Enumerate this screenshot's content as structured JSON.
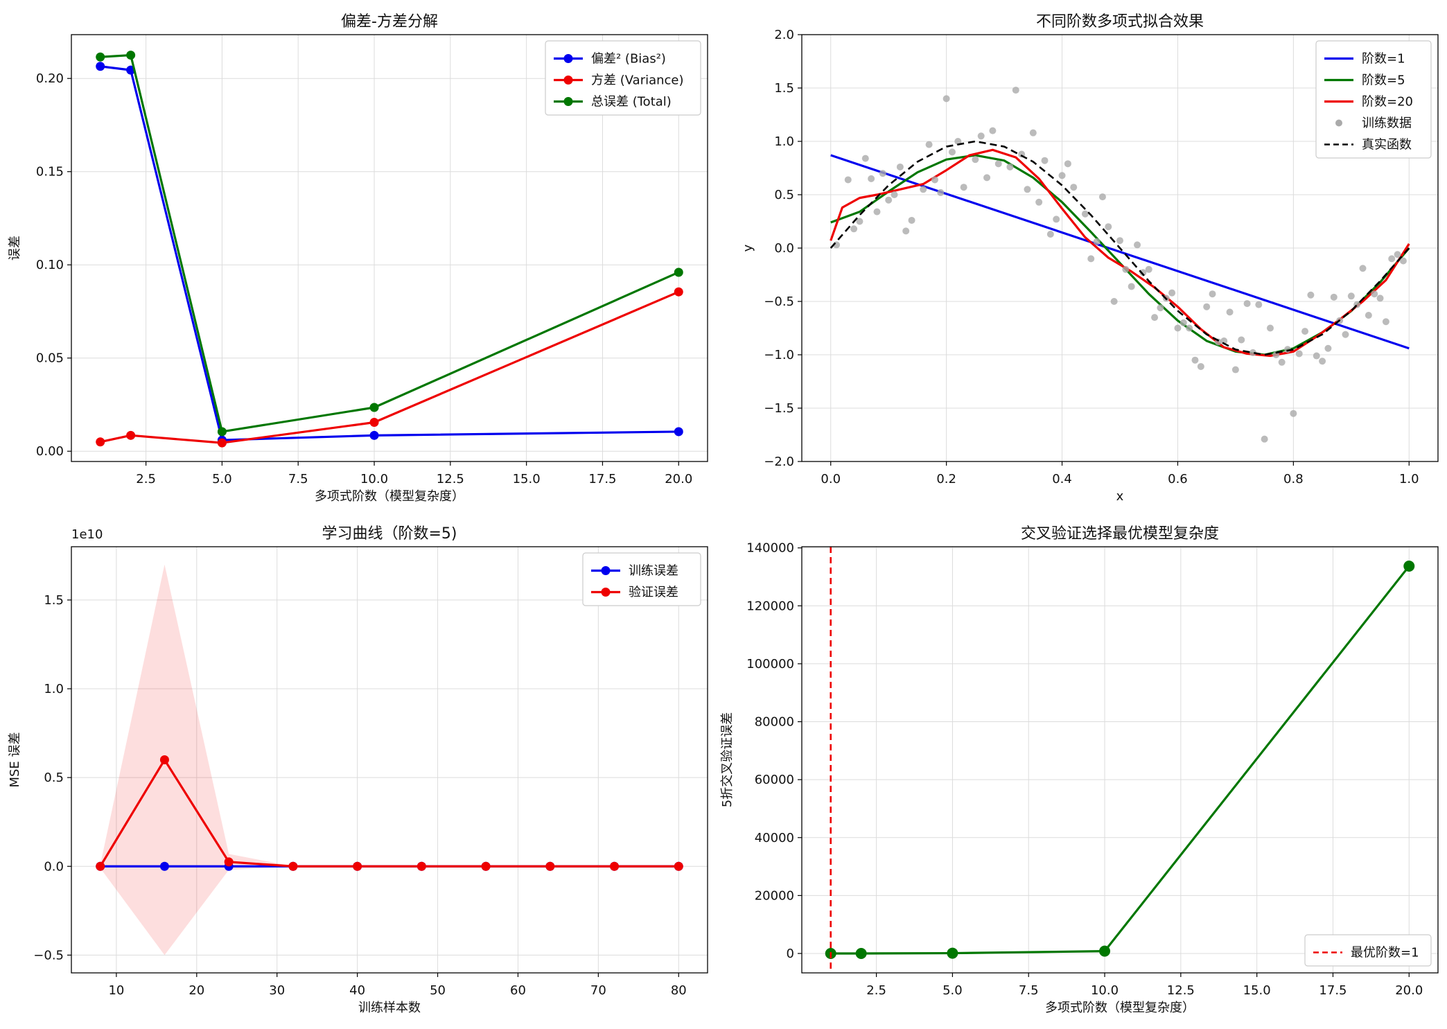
{
  "chart_data": [
    {
      "type": "line",
      "title": "偏差-方差分解",
      "xlabel": "多项式阶数（模型复杂度）",
      "ylabel": "误差",
      "xlim": [
        0.05,
        20.95
      ],
      "ylim": [
        -0.0055,
        0.2235
      ],
      "xticks": [
        2.5,
        5.0,
        7.5,
        10.0,
        12.5,
        15.0,
        17.5,
        20.0
      ],
      "xtick_labels": [
        "2.5",
        "5.0",
        "7.5",
        "10.0",
        "12.5",
        "15.0",
        "17.5",
        "20.0"
      ],
      "yticks": [
        0.0,
        0.05,
        0.1,
        0.15,
        0.2
      ],
      "ytick_labels": [
        "0.00",
        "0.05",
        "0.10",
        "0.15",
        "0.20"
      ],
      "grid": true,
      "legend_position": "top-right",
      "x": [
        1,
        2,
        5,
        10,
        20
      ],
      "series": [
        {
          "name": "偏差² (Bias²)",
          "color": "#0000ee",
          "marker": "circle",
          "values": [
            0.2065,
            0.2045,
            0.006,
            0.0085,
            0.0105
          ]
        },
        {
          "name": "方差 (Variance)",
          "color": "#ee0000",
          "marker": "circle",
          "values": [
            0.005,
            0.0085,
            0.0045,
            0.0155,
            0.0855
          ]
        },
        {
          "name": "总误差 (Total)",
          "color": "#007700",
          "marker": "circle",
          "values": [
            0.2115,
            0.2125,
            0.0105,
            0.0235,
            0.096
          ]
        }
      ]
    },
    {
      "type": "line",
      "title": "不同阶数多项式拟合效果",
      "xlabel": "x",
      "ylabel": "y",
      "xlim": [
        -0.05,
        1.05
      ],
      "ylim": [
        -2.0,
        2.0
      ],
      "xticks": [
        0.0,
        0.2,
        0.4,
        0.6,
        0.8,
        1.0
      ],
      "xtick_labels": [
        "0.0",
        "0.2",
        "0.4",
        "0.6",
        "0.8",
        "1.0"
      ],
      "yticks": [
        -2.0,
        -1.5,
        -1.0,
        -0.5,
        0.0,
        0.5,
        1.0,
        1.5,
        2.0
      ],
      "ytick_labels": [
        "−2.0",
        "−1.5",
        "−1.0",
        "−0.5",
        "0.0",
        "0.5",
        "1.0",
        "1.5",
        "2.0"
      ],
      "grid": true,
      "legend_position": "top-right",
      "series": [
        {
          "name": "阶数=1",
          "color": "#0000ee",
          "style": "solid",
          "x": [
            0.0,
            1.0
          ],
          "values": [
            0.87,
            -0.94
          ]
        },
        {
          "name": "阶数=5",
          "color": "#007700",
          "style": "solid",
          "x": [
            0.0,
            0.05,
            0.1,
            0.15,
            0.2,
            0.25,
            0.3,
            0.35,
            0.4,
            0.45,
            0.5,
            0.55,
            0.6,
            0.65,
            0.7,
            0.75,
            0.8,
            0.85,
            0.9,
            0.95,
            1.0
          ],
          "values": [
            0.24,
            0.34,
            0.53,
            0.71,
            0.83,
            0.87,
            0.82,
            0.66,
            0.43,
            0.15,
            -0.14,
            -0.43,
            -0.68,
            -0.87,
            -0.97,
            -1.0,
            -0.94,
            -0.79,
            -0.59,
            -0.32,
            0.0
          ]
        },
        {
          "name": "阶数=20",
          "color": "#ee0000",
          "style": "solid",
          "x": [
            0.0,
            0.02,
            0.05,
            0.08,
            0.12,
            0.16,
            0.2,
            0.24,
            0.28,
            0.32,
            0.36,
            0.4,
            0.44,
            0.48,
            0.52,
            0.56,
            0.6,
            0.64,
            0.68,
            0.72,
            0.76,
            0.8,
            0.84,
            0.88,
            0.92,
            0.96,
            1.0
          ],
          "values": [
            0.07,
            0.38,
            0.47,
            0.5,
            0.55,
            0.6,
            0.73,
            0.87,
            0.92,
            0.85,
            0.65,
            0.37,
            0.1,
            -0.09,
            -0.22,
            -0.37,
            -0.55,
            -0.76,
            -0.93,
            -0.99,
            -1.01,
            -0.97,
            -0.83,
            -0.67,
            -0.5,
            -0.3,
            0.04
          ]
        },
        {
          "name": "训练数据",
          "color": "#aaaaaa",
          "style": "scatter",
          "x": [
            0.01,
            0.03,
            0.04,
            0.05,
            0.06,
            0.07,
            0.08,
            0.09,
            0.1,
            0.11,
            0.12,
            0.13,
            0.14,
            0.16,
            0.17,
            0.18,
            0.19,
            0.2,
            0.21,
            0.22,
            0.23,
            0.25,
            0.26,
            0.27,
            0.28,
            0.29,
            0.31,
            0.32,
            0.33,
            0.34,
            0.35,
            0.36,
            0.37,
            0.38,
            0.39,
            0.4,
            0.41,
            0.42,
            0.44,
            0.45,
            0.46,
            0.47,
            0.48,
            0.49,
            0.5,
            0.51,
            0.52,
            0.53,
            0.54,
            0.55,
            0.56,
            0.57,
            0.58,
            0.59,
            0.6,
            0.61,
            0.62,
            0.63,
            0.64,
            0.65,
            0.66,
            0.67,
            0.68,
            0.69,
            0.7,
            0.71,
            0.72,
            0.73,
            0.74,
            0.75,
            0.76,
            0.77,
            0.78,
            0.79,
            0.8,
            0.81,
            0.82,
            0.83,
            0.84,
            0.85,
            0.86,
            0.87,
            0.88,
            0.89,
            0.9,
            0.91,
            0.92,
            0.93,
            0.94,
            0.95,
            0.96,
            0.97,
            0.98,
            0.99
          ],
          "values": [
            0.03,
            0.64,
            0.18,
            0.25,
            0.84,
            0.65,
            0.34,
            0.7,
            0.45,
            0.5,
            0.76,
            0.16,
            0.26,
            0.55,
            0.97,
            0.64,
            0.52,
            1.4,
            0.9,
            1.0,
            0.57,
            0.83,
            1.05,
            0.66,
            1.1,
            0.79,
            0.76,
            1.48,
            0.88,
            0.55,
            1.08,
            0.43,
            0.82,
            0.13,
            0.27,
            0.68,
            0.79,
            0.57,
            0.32,
            -0.1,
            0.06,
            0.48,
            0.2,
            -0.5,
            0.07,
            -0.2,
            -0.36,
            0.03,
            -0.23,
            -0.2,
            -0.65,
            -0.56,
            -0.47,
            -0.42,
            -0.75,
            -0.7,
            -0.75,
            -1.05,
            -1.11,
            -0.55,
            -0.43,
            -0.88,
            -0.87,
            -0.6,
            -1.14,
            -0.86,
            -0.52,
            -0.98,
            -0.53,
            -1.79,
            -0.75,
            -1.0,
            -1.07,
            -0.95,
            -1.55,
            -0.99,
            -0.78,
            -0.44,
            -1.01,
            -1.06,
            -0.94,
            -0.46,
            -0.68,
            -0.81,
            -0.45,
            -0.53,
            -0.19,
            -0.63,
            -0.43,
            -0.47,
            -0.69,
            -0.1,
            -0.06,
            -0.12
          ]
        },
        {
          "name": "真实函数",
          "color": "#000000",
          "style": "dashed",
          "x": [
            0.0,
            0.05,
            0.1,
            0.15,
            0.2,
            0.25,
            0.3,
            0.35,
            0.4,
            0.45,
            0.5,
            0.55,
            0.6,
            0.65,
            0.7,
            0.75,
            0.8,
            0.85,
            0.9,
            0.95,
            1.0
          ],
          "values": [
            0.0,
            0.309,
            0.588,
            0.809,
            0.951,
            1.0,
            0.951,
            0.809,
            0.588,
            0.309,
            0.0,
            -0.309,
            -0.588,
            -0.809,
            -0.951,
            -1.0,
            -0.951,
            -0.809,
            -0.588,
            -0.309,
            0.0
          ]
        }
      ]
    },
    {
      "type": "line",
      "title": "学习曲线（阶数=5)",
      "xlabel": "训练样本数",
      "ylabel": "MSE 误差",
      "scale_label": "1e10",
      "xlim": [
        4.4,
        83.6
      ],
      "ylim": [
        -0.6,
        1.8
      ],
      "xticks": [
        10,
        20,
        30,
        40,
        50,
        60,
        70,
        80
      ],
      "xtick_labels": [
        "10",
        "20",
        "30",
        "40",
        "50",
        "60",
        "70",
        "80"
      ],
      "yticks": [
        -0.5,
        0.0,
        0.5,
        1.0,
        1.5
      ],
      "ytick_labels": [
        "−0.5",
        "0.0",
        "0.5",
        "1.0",
        "1.5"
      ],
      "grid": true,
      "legend_position": "top-right",
      "x": [
        8,
        16,
        24,
        32,
        40,
        48,
        56,
        64,
        72,
        80
      ],
      "series": [
        {
          "name": "训练误差",
          "color": "#0000ee",
          "marker": "circle",
          "values": [
            0,
            0,
            0,
            0,
            0,
            0,
            0,
            0,
            0,
            0
          ]
        },
        {
          "name": "验证误差",
          "color": "#ee0000",
          "marker": "circle",
          "values": [
            0.0,
            0.6,
            0.025,
            0.0,
            0.0,
            0.0,
            0.0,
            0.0,
            0.0,
            0.0
          ],
          "band_upper": [
            0.01,
            1.7,
            0.07,
            0.0,
            0.0,
            0.0,
            0.0,
            0.0,
            0.0,
            0.0
          ],
          "band_lower": [
            -0.01,
            -0.5,
            -0.02,
            0.0,
            0.0,
            0.0,
            0.0,
            0.0,
            0.0,
            0.0
          ]
        }
      ]
    },
    {
      "type": "line",
      "title": "交叉验证选择最优模型复杂度",
      "xlabel": "多项式阶数（模型复杂度）",
      "ylabel": "5折交叉验证误差",
      "xlim": [
        0.05,
        20.95
      ],
      "ylim": [
        -6700,
        140400
      ],
      "xticks": [
        2.5,
        5.0,
        7.5,
        10.0,
        12.5,
        15.0,
        17.5,
        20.0
      ],
      "xtick_labels": [
        "2.5",
        "5.0",
        "7.5",
        "10.0",
        "12.5",
        "15.0",
        "17.5",
        "20.0"
      ],
      "yticks": [
        0,
        20000,
        40000,
        60000,
        80000,
        100000,
        120000,
        140000
      ],
      "ytick_labels": [
        "0",
        "20000",
        "40000",
        "60000",
        "80000",
        "100000",
        "120000",
        "140000"
      ],
      "grid": true,
      "legend_position": "bottom-right",
      "x": [
        1,
        2,
        5,
        10,
        20
      ],
      "series": [
        {
          "name": "",
          "color": "#007700",
          "marker": "circle",
          "values": [
            0,
            0,
            100,
            800,
            133700
          ]
        },
        {
          "name": "最优阶数=1",
          "color": "#ee0000",
          "style": "dashed-vertical",
          "x_value": 1
        }
      ]
    }
  ]
}
